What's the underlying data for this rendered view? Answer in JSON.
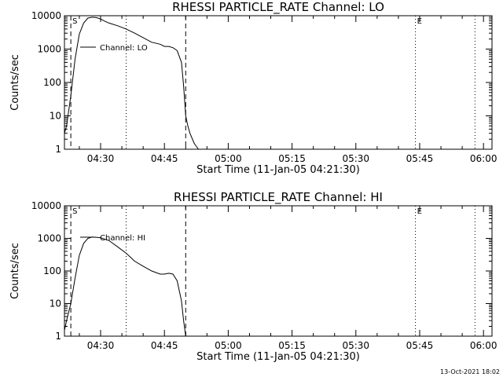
{
  "footer": "13-Oct-2021 18:02",
  "chart_data": [
    {
      "type": "line",
      "title": "RHESSI PARTICLE_RATE Channel: LO",
      "xlabel": "Start Time (11-Jan-05 04:21:30)",
      "ylabel": "Counts/sec",
      "yscale": "log",
      "ylim": [
        1,
        10000
      ],
      "yticks": [
        1,
        10,
        100,
        1000,
        10000
      ],
      "ytick_labels": [
        "1",
        "10",
        "100",
        "1000",
        "10000"
      ],
      "xlim": [
        "04:21:30",
        "06:02:00"
      ],
      "xticks": [
        "04:30",
        "04:45",
        "05:00",
        "05:15",
        "05:30",
        "05:45",
        "06:00"
      ],
      "legend": "Channel: LO",
      "legend_position": "top-left",
      "start_marker": "S",
      "end_marker": "E",
      "dashed_lines": [
        "04:23:00",
        "04:50:00"
      ],
      "dotted_lines": [
        "04:36:00",
        "05:44:00",
        "05:58:00"
      ],
      "line_color": "#000000",
      "x": [
        "04:21:30",
        "04:22:00",
        "04:23:00",
        "04:24:00",
        "04:25:00",
        "04:26:00",
        "04:27:00",
        "04:28:00",
        "04:29:00",
        "04:30:00",
        "04:31:00",
        "04:32:00",
        "04:34:00",
        "04:36:00",
        "04:38:00",
        "04:40:00",
        "04:42:00",
        "04:44:00",
        "04:45:00",
        "04:46:00",
        "04:47:00",
        "04:48:00",
        "04:49:00",
        "04:49:30",
        "04:50:00",
        "04:50:30",
        "04:51:00",
        "04:52:00",
        "04:53:00"
      ],
      "y": [
        3,
        5,
        40,
        500,
        2800,
        6000,
        8500,
        9000,
        8800,
        8000,
        6800,
        6000,
        5000,
        4000,
        3000,
        2200,
        1600,
        1400,
        1200,
        1200,
        1100,
        900,
        400,
        80,
        10,
        5,
        3,
        1.5,
        1
      ]
    },
    {
      "type": "line",
      "title": "RHESSI PARTICLE_RATE Channel: HI",
      "xlabel": "Start Time (11-Jan-05 04:21:30)",
      "ylabel": "Counts/sec",
      "yscale": "log",
      "ylim": [
        1,
        10000
      ],
      "yticks": [
        1,
        10,
        100,
        1000,
        10000
      ],
      "ytick_labels": [
        "1",
        "10",
        "100",
        "1000",
        "10000"
      ],
      "xlim": [
        "04:21:30",
        "06:02:00"
      ],
      "xticks": [
        "04:30",
        "04:45",
        "05:00",
        "05:15",
        "05:30",
        "05:45",
        "06:00"
      ],
      "legend": "Channel: HI",
      "legend_position": "top-left",
      "start_marker": "S",
      "end_marker": "E",
      "dashed_lines": [
        "04:23:00",
        "04:50:00"
      ],
      "dotted_lines": [
        "04:36:00",
        "05:44:00",
        "05:58:00"
      ],
      "line_color": "#000000",
      "x": [
        "04:21:30",
        "04:22:00",
        "04:23:00",
        "04:24:00",
        "04:25:00",
        "04:26:00",
        "04:27:00",
        "04:28:00",
        "04:30:00",
        "04:32:00",
        "04:34:00",
        "04:36:00",
        "04:38:00",
        "04:40:00",
        "04:42:00",
        "04:44:00",
        "04:45:00",
        "04:46:00",
        "04:47:00",
        "04:48:00",
        "04:49:00",
        "04:49:30",
        "04:50:00"
      ],
      "y": [
        1.5,
        3,
        10,
        60,
        300,
        700,
        1000,
        1100,
        1050,
        850,
        550,
        350,
        200,
        140,
        100,
        80,
        80,
        85,
        80,
        50,
        12,
        3,
        1
      ]
    }
  ]
}
